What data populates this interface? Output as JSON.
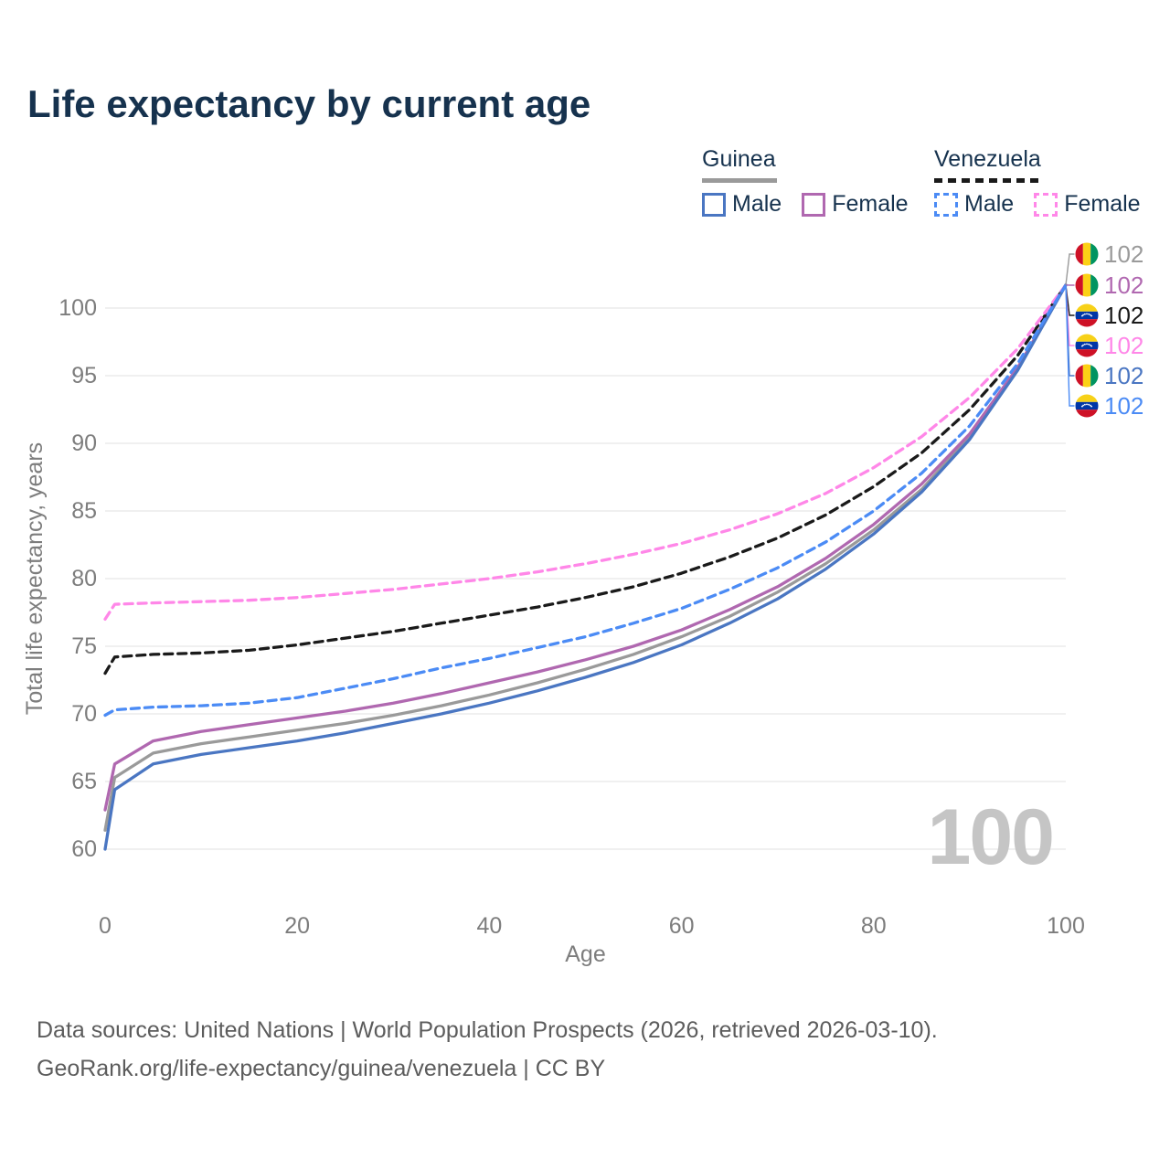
{
  "header": {
    "title": "Life expectancy by current age"
  },
  "legend": {
    "groups": [
      {
        "label": "Guinea",
        "underline_color": "#9a9a9a",
        "underline_style": "solid",
        "items": [
          {
            "label": "Male",
            "color": "#4a76c2",
            "style": "solid"
          },
          {
            "label": "Female",
            "color": "#b068b0",
            "style": "solid"
          }
        ]
      },
      {
        "label": "Venezuela",
        "underline_color": "#1a1a1a",
        "underline_style": "dashed",
        "items": [
          {
            "label": "Male",
            "color": "#4b8bf5",
            "style": "dashed"
          },
          {
            "label": "Female",
            "color": "#ff87e8",
            "style": "dashed"
          }
        ]
      }
    ]
  },
  "chart_data": {
    "type": "line",
    "title": "Life expectancy by current age",
    "xlabel": "Age",
    "ylabel": "Total life expectancy, years",
    "x_ticks": [
      0,
      20,
      40,
      60,
      80,
      100
    ],
    "y_ticks": [
      60,
      65,
      70,
      75,
      80,
      85,
      90,
      95,
      100
    ],
    "xlim": [
      0,
      100
    ],
    "ylim": [
      60,
      103
    ],
    "grid": "horizontal-only",
    "age_indicator": "100",
    "axis_text_color": "#7d7d7d",
    "gridline_color": "#e8e8e8",
    "watermark_color": "#c5c5c5",
    "x": [
      0,
      1,
      5,
      10,
      15,
      20,
      25,
      30,
      35,
      40,
      45,
      50,
      55,
      60,
      65,
      70,
      75,
      80,
      85,
      90,
      95,
      100
    ],
    "series": [
      {
        "name": "Guinea Both sexes",
        "country": "Guinea",
        "sex": "Both sexes",
        "flag": "guinea",
        "color": "#9a9a9a",
        "line_style": "solid",
        "end_label": "102",
        "values": [
          61.4,
          65.3,
          67.1,
          67.8,
          68.3,
          68.8,
          69.3,
          69.9,
          70.6,
          71.4,
          72.3,
          73.3,
          74.4,
          75.7,
          77.2,
          79.0,
          81.1,
          83.6,
          86.6,
          90.5,
          95.5,
          101.7
        ]
      },
      {
        "name": "Guinea Female",
        "country": "Guinea",
        "sex": "Female",
        "flag": "guinea",
        "color": "#b068b0",
        "line_style": "solid",
        "end_label": "102",
        "values": [
          62.9,
          66.3,
          68.0,
          68.7,
          69.2,
          69.7,
          70.2,
          70.8,
          71.5,
          72.3,
          73.1,
          74.0,
          75.0,
          76.2,
          77.7,
          79.4,
          81.5,
          84.0,
          87.0,
          90.7,
          95.6,
          101.7
        ]
      },
      {
        "name": "Venezuela Both sexes",
        "country": "Venezuela",
        "sex": "Both sexes",
        "flag": "venezuela",
        "color": "#1a1a1a",
        "line_style": "dashed",
        "end_label": "102",
        "values": [
          73.0,
          74.2,
          74.4,
          74.5,
          74.7,
          75.1,
          75.6,
          76.1,
          76.7,
          77.3,
          77.9,
          78.6,
          79.4,
          80.4,
          81.6,
          83.0,
          84.7,
          86.8,
          89.3,
          92.5,
          96.5,
          101.7
        ]
      },
      {
        "name": "Venezuela Female",
        "country": "Venezuela",
        "sex": "Female",
        "flag": "venezuela",
        "color": "#ff87e8",
        "line_style": "dashed",
        "end_label": "102",
        "values": [
          77.0,
          78.1,
          78.2,
          78.3,
          78.4,
          78.6,
          78.9,
          79.2,
          79.6,
          80.0,
          80.5,
          81.1,
          81.8,
          82.6,
          83.6,
          84.8,
          86.3,
          88.2,
          90.5,
          93.4,
          97.0,
          101.7
        ]
      },
      {
        "name": "Guinea Male",
        "country": "Guinea",
        "sex": "Male",
        "flag": "guinea",
        "color": "#4a76c2",
        "line_style": "solid",
        "end_label": "102",
        "values": [
          60.0,
          64.4,
          66.3,
          67.0,
          67.5,
          68.0,
          68.6,
          69.3,
          70.0,
          70.8,
          71.7,
          72.7,
          73.8,
          75.1,
          76.7,
          78.5,
          80.7,
          83.3,
          86.4,
          90.3,
          95.4,
          101.7
        ]
      },
      {
        "name": "Venezuela Male",
        "country": "Venezuela",
        "sex": "Male",
        "flag": "venezuela",
        "color": "#4b8bf5",
        "line_style": "dashed",
        "end_label": "102",
        "values": [
          69.9,
          70.3,
          70.5,
          70.6,
          70.8,
          71.2,
          71.9,
          72.6,
          73.4,
          74.1,
          74.9,
          75.7,
          76.7,
          77.8,
          79.2,
          80.8,
          82.7,
          85.0,
          87.8,
          91.3,
          95.9,
          101.7
        ]
      }
    ],
    "flag_colors": {
      "guinea": [
        "#ce1126",
        "#fcd116",
        "#009460"
      ],
      "venezuela": [
        "#f7d118",
        "#0036a7",
        "#ce1126"
      ]
    }
  },
  "footer": {
    "line1": "Data sources: United Nations | World Population Prospects (2026, retrieved 2026-03-10).",
    "line2": "GeoRank.org/life-expectancy/guinea/venezuela | CC BY"
  }
}
